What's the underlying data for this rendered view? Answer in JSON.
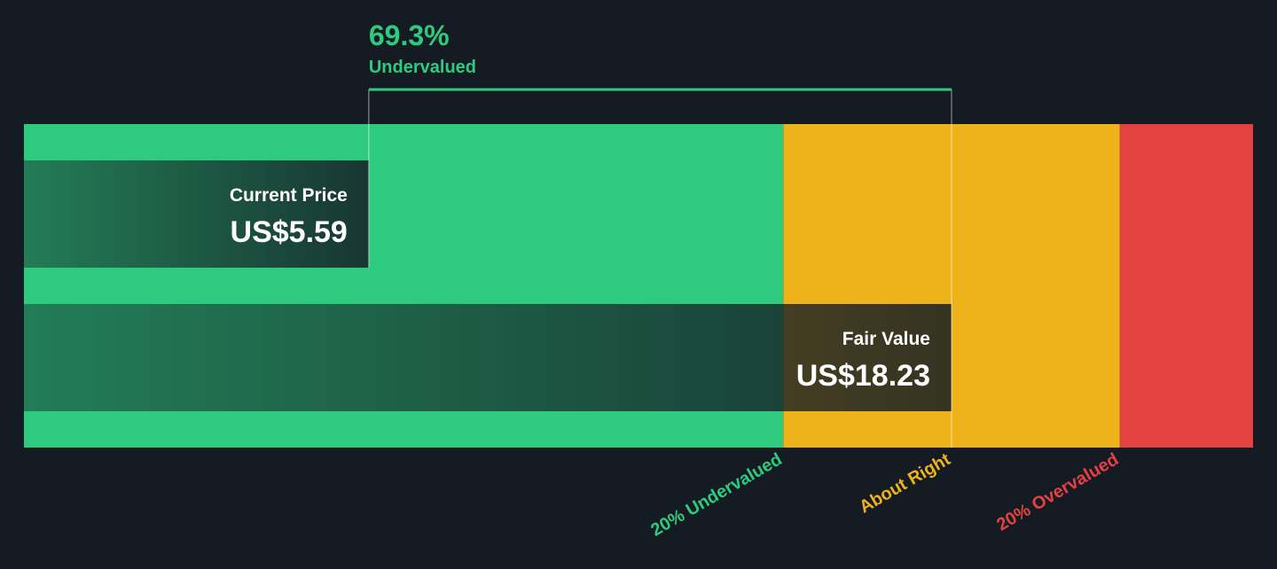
{
  "chart_data": {
    "type": "valuation",
    "categories": [
      "Current Price",
      "Fair Value"
    ],
    "values": [
      5.59,
      18.23
    ],
    "value_labels": [
      "US$5.59",
      "US$18.23"
    ],
    "xlim": [
      -1.89,
      24.77
    ],
    "zones": [
      {
        "label": "20% Undervalued",
        "value": 14.58,
        "color": "#2ecb7f"
      },
      {
        "label": "About Right",
        "value": 18.23,
        "color": "#eeb31a"
      },
      {
        "label": "20% Overvalued",
        "value": 21.88,
        "color": "#e64141"
      }
    ],
    "annotation": {
      "value": 69.3,
      "label": "69.3%",
      "text": "Undervalued",
      "color": "#2ecb7f"
    }
  }
}
